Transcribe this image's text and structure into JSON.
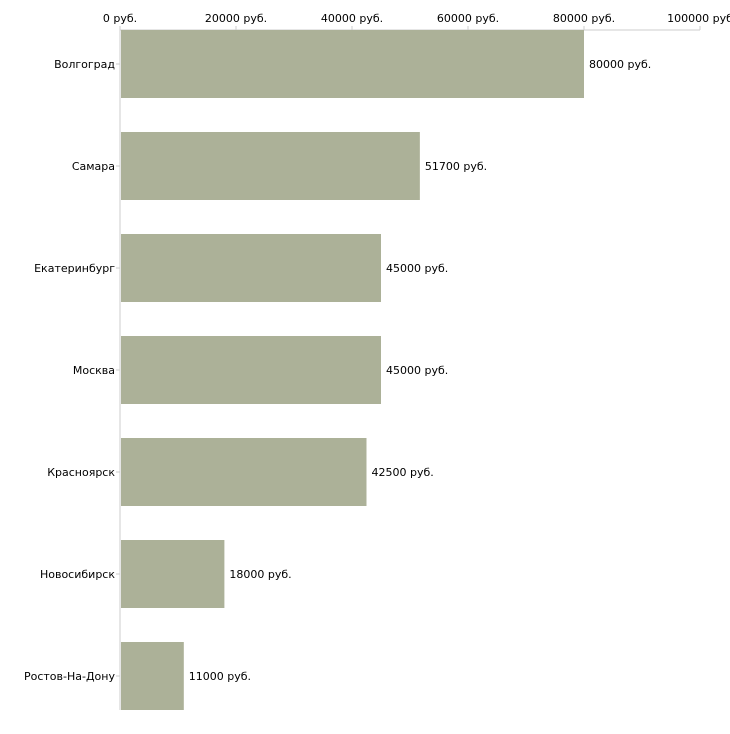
{
  "chart_data": {
    "type": "bar",
    "orientation": "horizontal",
    "categories": [
      "Волгоград",
      "Самара",
      "Екатеринбург",
      "Москва",
      "Красноярск",
      "Новосибирск",
      "Ростов-На-Дону"
    ],
    "values": [
      80000,
      51700,
      45000,
      45000,
      42500,
      18000,
      11000
    ],
    "value_labels": [
      "80000 руб.",
      "51700 руб.",
      "45000 руб.",
      "45000 руб.",
      "42500 руб.",
      "18000 руб.",
      "11000 руб."
    ],
    "x_ticks": [
      0,
      20000,
      40000,
      60000,
      80000,
      100000
    ],
    "x_tick_labels": [
      "0 руб.",
      "20000 руб.",
      "40000 руб.",
      "60000 руб.",
      "80000 руб.",
      "100000 руб"
    ],
    "xlim": [
      0,
      100000
    ],
    "title": "",
    "xlabel": "",
    "ylabel": "",
    "grid": false,
    "legend": "none",
    "bar_color": "#acb198",
    "axis_color": "#cccccc",
    "text_color": "#000000"
  }
}
